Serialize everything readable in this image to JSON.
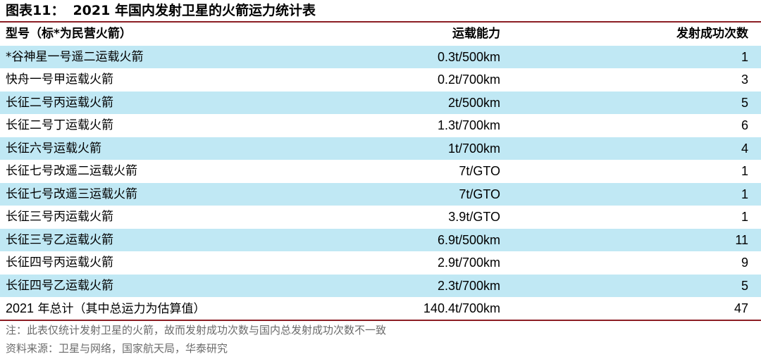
{
  "title": {
    "label": "图表11：",
    "text": "2021 年国内发射卫星的火箭运力统计表"
  },
  "table": {
    "headers": {
      "name": "型号（标*为民营火箭）",
      "capacity": "运载能力",
      "launches": "发射成功次数"
    },
    "rows": [
      {
        "name": "*谷神星一号遥二运载火箭",
        "capacity": "0.3t/500km",
        "launches": "1"
      },
      {
        "name": "快舟一号甲运载火箭",
        "capacity": "0.2t/700km",
        "launches": "3"
      },
      {
        "name": "长征二号丙运载火箭",
        "capacity": "2t/500km",
        "launches": "5"
      },
      {
        "name": "长征二号丁运载火箭",
        "capacity": "1.3t/700km",
        "launches": "6"
      },
      {
        "name": "长征六号运载火箭",
        "capacity": "1t/700km",
        "launches": "4"
      },
      {
        "name": "长征七号改遥二运载火箭",
        "capacity": "7t/GTO",
        "launches": "1"
      },
      {
        "name": "长征七号改遥三运载火箭",
        "capacity": "7t/GTO",
        "launches": "1"
      },
      {
        "name": "长征三号丙运载火箭",
        "capacity": "3.9t/GTO",
        "launches": "1"
      },
      {
        "name": "长征三号乙运载火箭",
        "capacity": "6.9t/500km",
        "launches": "11"
      },
      {
        "name": "长征四号丙运载火箭",
        "capacity": "2.9t/700km",
        "launches": "9"
      },
      {
        "name": "长征四号乙运载火箭",
        "capacity": "2.3t/700km",
        "launches": "5"
      }
    ],
    "total": {
      "year": "2021",
      "label": " 年总计（其中总运力为估算值）",
      "capacity": "140.4t/700km",
      "launches": "47"
    }
  },
  "notes": {
    "note": "注：此表仅统计发射卫星的火箭，故而发射成功次数与国内总发射成功次数不一致",
    "source": "资料来源：卫星与网络，国家航天局，华泰研究"
  },
  "colors": {
    "stripe": "#c0e8f4",
    "rule": "#8c1e24",
    "note_text": "#6b6b6b"
  }
}
